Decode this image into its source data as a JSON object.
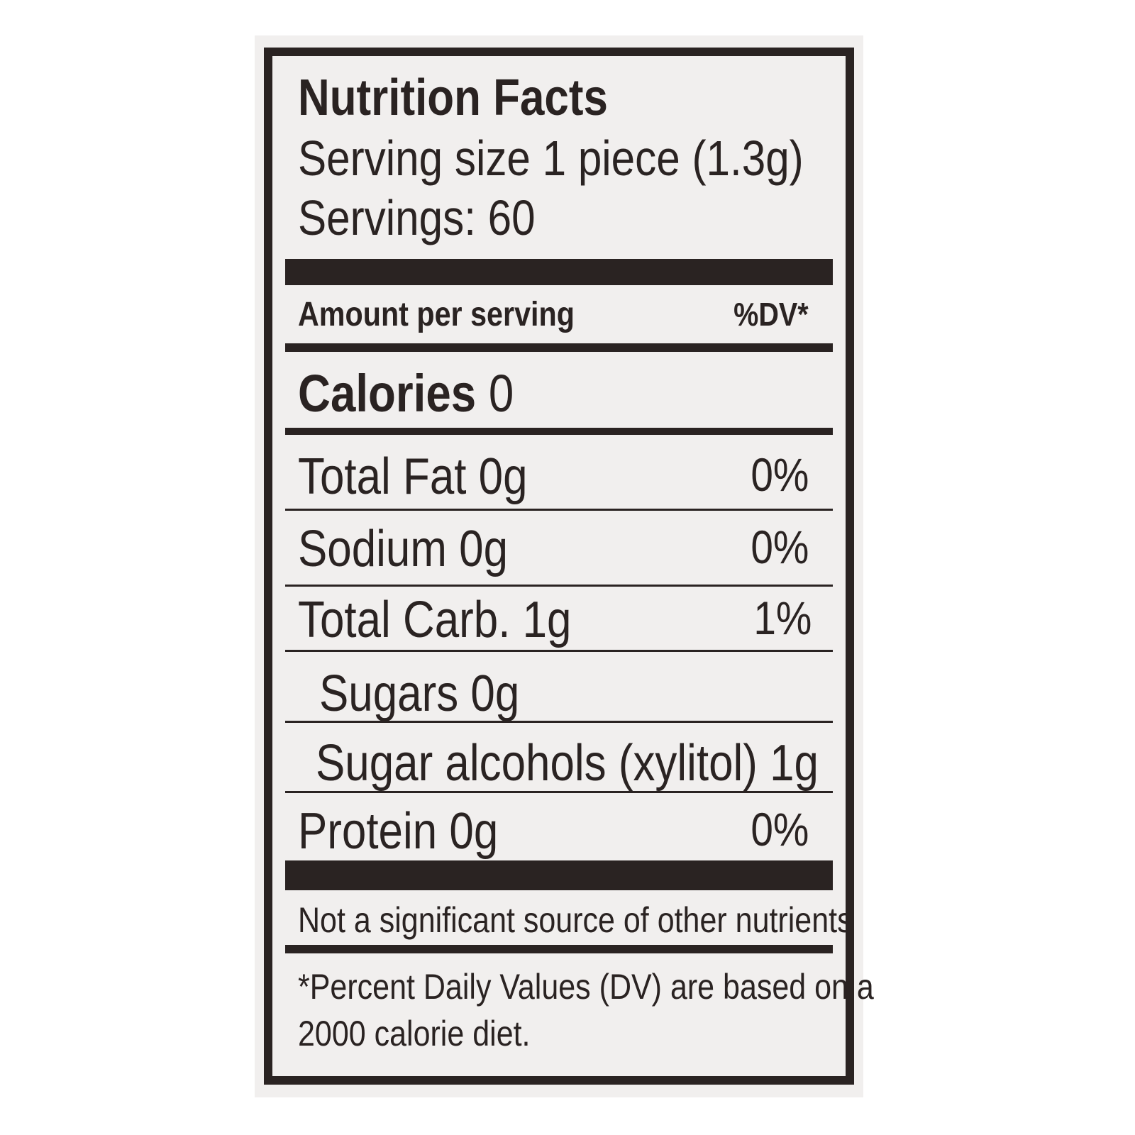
{
  "label": {
    "title": "Nutrition Facts",
    "serving_size": "Serving size 1 piece (1.3g)",
    "servings": "Servings: 60",
    "amount_header": "Amount per serving",
    "dv_header": "%DV*",
    "calories_label": "Calories",
    "calories_value": "0",
    "nutrients": [
      {
        "name": "Total Fat 0g",
        "dv": "0%"
      },
      {
        "name": "Sodium 0g",
        "dv": "0%"
      },
      {
        "name": "Total Carb. 1g",
        "dv": "1%"
      },
      {
        "name": "Sugars 0g",
        "dv": ""
      },
      {
        "name": "Sugar alcohols (xylitol) 1g",
        "dv": ""
      },
      {
        "name": "Protein 0g",
        "dv": "0%"
      }
    ],
    "not_significant": "Not a significant source of other nutrients",
    "footnote_line1": "*Percent Daily Values (DV) are based on a",
    "footnote_line2": "2000 calorie diet."
  }
}
